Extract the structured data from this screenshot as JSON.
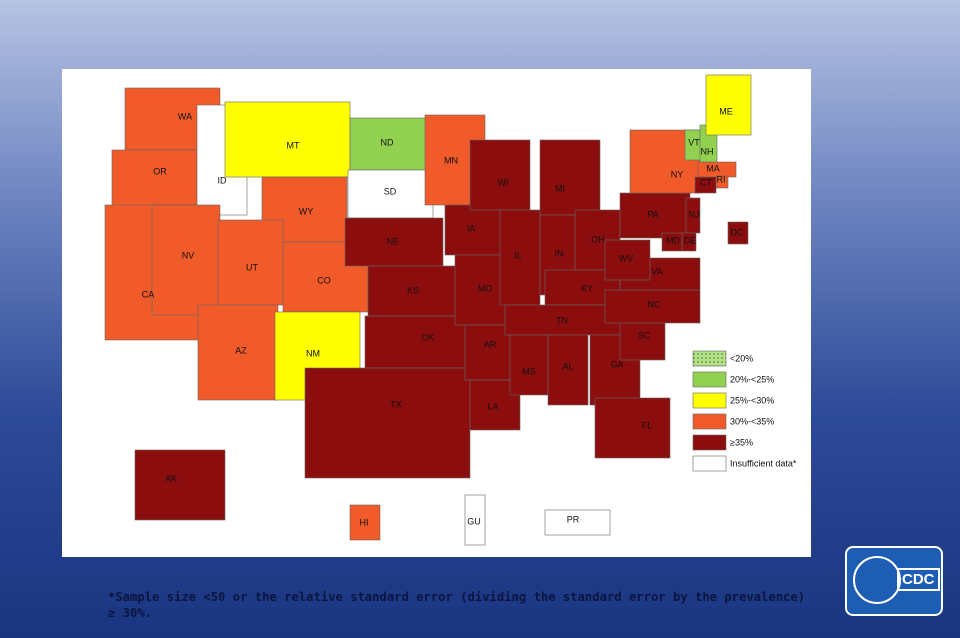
{
  "legend": [
    {
      "label": "<20%",
      "color": "#b6e08a",
      "pattern": "dots"
    },
    {
      "label": "20%-<25%",
      "color": "#92d050"
    },
    {
      "label": "25%-<30%",
      "color": "#ffff00"
    },
    {
      "label": "30%-<35%",
      "color": "#f15a29"
    },
    {
      "label": "≥35%",
      "color": "#8b0d0d"
    },
    {
      "label": "Insufficient data*",
      "color": "#ffffff"
    }
  ],
  "states": [
    {
      "label": "WA",
      "category": 3
    },
    {
      "label": "OR",
      "category": 3
    },
    {
      "label": "CA",
      "category": 3
    },
    {
      "label": "ID",
      "category": 5
    },
    {
      "label": "NV",
      "category": 3
    },
    {
      "label": "MT",
      "category": 2
    },
    {
      "label": "WY",
      "category": 3
    },
    {
      "label": "UT",
      "category": 3
    },
    {
      "label": "AZ",
      "category": 3
    },
    {
      "label": "CO",
      "category": 3
    },
    {
      "label": "NM",
      "category": 2
    },
    {
      "label": "ND",
      "category": 1
    },
    {
      "label": "SD",
      "category": 5
    },
    {
      "label": "NE",
      "category": 4
    },
    {
      "label": "KS",
      "category": 4
    },
    {
      "label": "OK",
      "category": 4
    },
    {
      "label": "TX",
      "category": 4
    },
    {
      "label": "MN",
      "category": 3
    },
    {
      "label": "IA",
      "category": 4
    },
    {
      "label": "MO",
      "category": 4
    },
    {
      "label": "AR",
      "category": 4
    },
    {
      "label": "LA",
      "category": 4
    },
    {
      "label": "WI",
      "category": 4
    },
    {
      "label": "IL",
      "category": 4
    },
    {
      "label": "MI",
      "category": 4
    },
    {
      "label": "IN",
      "category": 4
    },
    {
      "label": "OH",
      "category": 4
    },
    {
      "label": "KY",
      "category": 4
    },
    {
      "label": "TN",
      "category": 4
    },
    {
      "label": "MS",
      "category": 4
    },
    {
      "label": "AL",
      "category": 4
    },
    {
      "label": "GA",
      "category": 4
    },
    {
      "label": "FL",
      "category": 4
    },
    {
      "label": "SC",
      "category": 4
    },
    {
      "label": "NC",
      "category": 4
    },
    {
      "label": "VA",
      "category": 4
    },
    {
      "label": "WV",
      "category": 4
    },
    {
      "label": "PA",
      "category": 4
    },
    {
      "label": "NY",
      "category": 3
    },
    {
      "label": "VT",
      "category": 1
    },
    {
      "label": "NH",
      "category": 1
    },
    {
      "label": "ME",
      "category": 2
    },
    {
      "label": "MA",
      "category": 3
    },
    {
      "label": "RI",
      "category": 3
    },
    {
      "label": "CT",
      "category": 4
    },
    {
      "label": "NJ",
      "category": 4
    },
    {
      "label": "DE",
      "category": 4
    },
    {
      "label": "MD",
      "category": 4
    },
    {
      "label": "DC",
      "category": 4
    },
    {
      "label": "AK",
      "category": 4
    },
    {
      "label": "HI",
      "category": 3
    },
    {
      "label": "GU",
      "category": 5
    },
    {
      "label": "PR",
      "category": 5
    }
  ],
  "footnote": "*Sample size <50 or the relative standard error (dividing the standard error by the prevalence) ≥ 30%.",
  "logo": "CDC"
}
